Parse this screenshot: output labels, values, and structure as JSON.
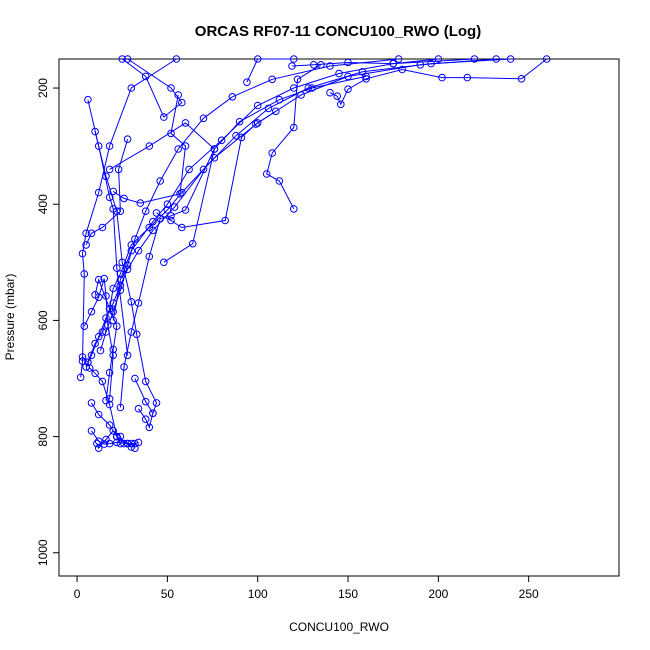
{
  "chart_data": {
    "type": "scatter",
    "title": "ORCAS RF07-11 CONCU100_RWO (Log)",
    "xlabel": "CONCU100_RWO",
    "ylabel": "Pressure (mbar)",
    "xlim": [
      -10,
      300
    ],
    "ylim": [
      1040,
      150
    ],
    "y_reversed": true,
    "grid": false,
    "legend": "none",
    "x_ticks": [
      0,
      50,
      100,
      150,
      200,
      250
    ],
    "y_ticks": [
      200,
      400,
      600,
      800,
      1000
    ],
    "colors": {
      "series": "#0000ff",
      "frame": "#000000"
    },
    "series": [
      {
        "points": [
          [
            28,
            150
          ],
          [
            52,
            200
          ],
          [
            58,
            225
          ],
          [
            48,
            250
          ],
          [
            38,
            180
          ],
          [
            25,
            150
          ]
        ]
      },
      {
        "points": [
          [
            120,
            408
          ],
          [
            112,
            360
          ],
          [
            105,
            348
          ],
          [
            108,
            312
          ],
          [
            120,
            268
          ],
          [
            122,
            185
          ],
          [
            135,
            160
          ]
        ]
      },
      {
        "points": [
          [
            10,
            275
          ],
          [
            16,
            352
          ],
          [
            22,
            412
          ],
          [
            25,
            500
          ],
          [
            30,
            568
          ],
          [
            33,
            624
          ],
          [
            38,
            705
          ],
          [
            44,
            742
          ],
          [
            42,
            760
          ]
        ]
      },
      {
        "points": [
          [
            6,
            220
          ],
          [
            12,
            300
          ],
          [
            18,
            388
          ],
          [
            20,
            408
          ],
          [
            22,
            510
          ],
          [
            28,
            660
          ]
        ]
      },
      {
        "points": [
          [
            28,
            288
          ],
          [
            23,
            340
          ],
          [
            24,
            412
          ],
          [
            14,
            440
          ],
          [
            8,
            450
          ],
          [
            5,
            470
          ]
        ]
      },
      {
        "points": [
          [
            2,
            698
          ],
          [
            3,
            670
          ],
          [
            4,
            520
          ],
          [
            3,
            485
          ],
          [
            5,
            450
          ],
          [
            12,
            380
          ],
          [
            18,
            300
          ],
          [
            30,
            200
          ],
          [
            55,
            150
          ]
        ]
      },
      {
        "points": [
          [
            20,
            378
          ],
          [
            26,
            390
          ],
          [
            35,
            398
          ],
          [
            57,
            382
          ],
          [
            60,
            300
          ],
          [
            52,
            278
          ],
          [
            56,
            212
          ]
        ]
      },
      {
        "points": [
          [
            44,
            415
          ],
          [
            52,
            428
          ],
          [
            58,
            440
          ],
          [
            82,
            428
          ],
          [
            91,
            285
          ],
          [
            99,
            262
          ],
          [
            110,
            240
          ]
        ]
      },
      {
        "points": [
          [
            10,
            556
          ],
          [
            12,
            530
          ],
          [
            18,
            580
          ],
          [
            22,
            610
          ],
          [
            20,
            650
          ],
          [
            18,
            690
          ],
          [
            16,
            738
          ]
        ]
      },
      {
        "points": [
          [
            4,
            610
          ],
          [
            8,
            585
          ],
          [
            12,
            560
          ],
          [
            15,
            528
          ],
          [
            16,
            558
          ],
          [
            17,
            608
          ],
          [
            20,
            660
          ],
          [
            18,
            735
          ]
        ]
      },
      {
        "points": [
          [
            3,
            663
          ],
          [
            6,
            672
          ],
          [
            7,
            682
          ],
          [
            10,
            691
          ],
          [
            14,
            705
          ],
          [
            18,
            745
          ],
          [
            22,
            800
          ],
          [
            24,
            812
          ]
        ]
      },
      {
        "points": [
          [
            8,
            790
          ],
          [
            12,
            808
          ],
          [
            15,
            813
          ],
          [
            18,
            812
          ],
          [
            22,
            810
          ],
          [
            28,
            812
          ],
          [
            30,
            818
          ]
        ]
      },
      {
        "points": [
          [
            11,
            812
          ],
          [
            12,
            820
          ],
          [
            16,
            805
          ],
          [
            20,
            790
          ],
          [
            24,
            800
          ],
          [
            26,
            812
          ],
          [
            30,
            812
          ],
          [
            32,
            820
          ]
        ]
      },
      {
        "points": [
          [
            8,
            742
          ],
          [
            12,
            762
          ],
          [
            18,
            780
          ],
          [
            22,
            800
          ],
          [
            28,
            812
          ],
          [
            32,
            812
          ],
          [
            34,
            810
          ]
        ]
      },
      {
        "points": [
          [
            34,
            752
          ],
          [
            38,
            770
          ],
          [
            40,
            784
          ],
          [
            42,
            760
          ],
          [
            38,
            740
          ],
          [
            32,
            700
          ]
        ]
      },
      {
        "points": [
          [
            18,
            340
          ],
          [
            40,
            300
          ],
          [
            60,
            260
          ],
          [
            76,
            305
          ],
          [
            64,
            468
          ],
          [
            48,
            500
          ]
        ]
      },
      {
        "points": [
          [
            94,
            190
          ],
          [
            100,
            150
          ],
          [
            120,
            150
          ]
        ]
      },
      {
        "points": [
          [
            119,
            162
          ],
          [
            131,
            160
          ],
          [
            150,
            156
          ],
          [
            175,
            158
          ],
          [
            200,
            150
          ]
        ]
      },
      {
        "points": [
          [
            140,
            208
          ],
          [
            144,
            214
          ],
          [
            146,
            228
          ],
          [
            150,
            202
          ],
          [
            160,
            184
          ],
          [
            180,
            168
          ],
          [
            202,
            182
          ],
          [
            216,
            182
          ],
          [
            246,
            184
          ],
          [
            260,
            150
          ]
        ]
      },
      {
        "points": [
          [
            20,
            600
          ],
          [
            24,
            530
          ],
          [
            30,
            480
          ],
          [
            42,
            430
          ],
          [
            50,
            400
          ],
          [
            62,
            340
          ],
          [
            80,
            290
          ],
          [
            100,
            230
          ],
          [
            120,
            200
          ],
          [
            145,
            175
          ],
          [
            175,
            158
          ],
          [
            220,
            150
          ]
        ]
      },
      {
        "points": [
          [
            24,
            750
          ],
          [
            26,
            680
          ],
          [
            30,
            620
          ],
          [
            34,
            570
          ],
          [
            40,
            490
          ],
          [
            46,
            425
          ],
          [
            52,
            420
          ],
          [
            60,
            410
          ],
          [
            76,
            305
          ],
          [
            90,
            258
          ],
          [
            112,
            220
          ],
          [
            130,
            200
          ],
          [
            160,
            180
          ]
        ]
      },
      {
        "points": [
          [
            6,
            672
          ],
          [
            10,
            640
          ],
          [
            14,
            620
          ],
          [
            18,
            580
          ],
          [
            20,
            545
          ],
          [
            24,
            520
          ],
          [
            30,
            470
          ],
          [
            40,
            440
          ],
          [
            50,
            410
          ],
          [
            58,
            380
          ],
          [
            76,
            320
          ],
          [
            100,
            260
          ],
          [
            124,
            212
          ],
          [
            150,
            180
          ],
          [
            190,
            160
          ],
          [
            232,
            150
          ]
        ]
      },
      {
        "points": [
          [
            5,
            680
          ],
          [
            8,
            660
          ],
          [
            12,
            628
          ],
          [
            16,
            596
          ],
          [
            20,
            570
          ],
          [
            24,
            540
          ],
          [
            28,
            512
          ],
          [
            34,
            480
          ],
          [
            42,
            445
          ],
          [
            54,
            405
          ],
          [
            70,
            340
          ],
          [
            88,
            282
          ],
          [
            106,
            235
          ],
          [
            128,
            200
          ],
          [
            158,
            172
          ],
          [
            196,
            158
          ],
          [
            240,
            150
          ]
        ]
      },
      {
        "points": [
          [
            13,
            652
          ],
          [
            16,
            620
          ],
          [
            20,
            585
          ],
          [
            24,
            548
          ],
          [
            28,
            505
          ],
          [
            32,
            460
          ],
          [
            38,
            412
          ],
          [
            46,
            360
          ],
          [
            56,
            305
          ],
          [
            70,
            252
          ],
          [
            86,
            215
          ],
          [
            108,
            185
          ],
          [
            140,
            162
          ],
          [
            178,
            150
          ]
        ]
      }
    ]
  }
}
